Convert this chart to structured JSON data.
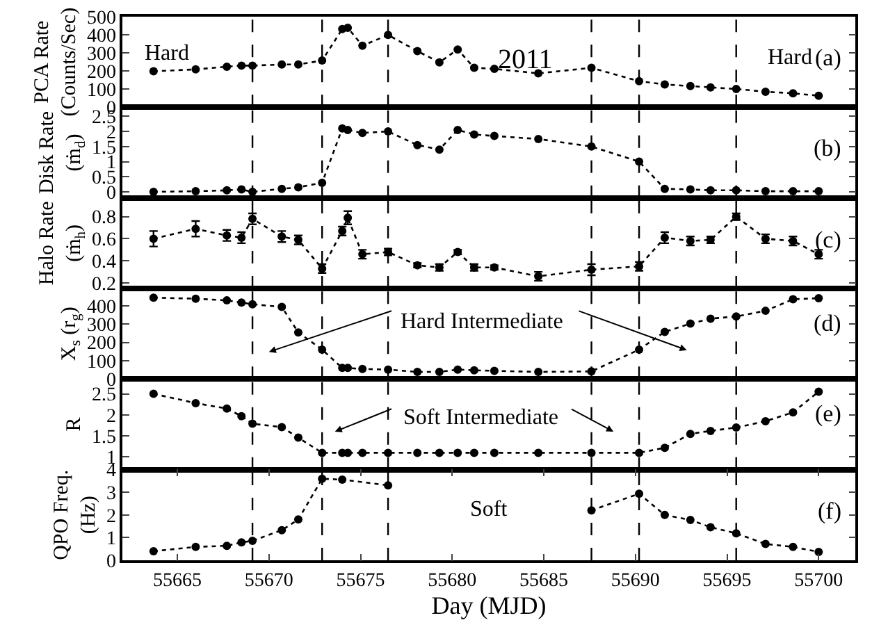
{
  "chart_data": [
    {
      "type": "line",
      "ylabel": "PCA Rate\n(Counts/Sec)",
      "color": "#000000",
      "marker": "circle",
      "line_style": "dotted",
      "xlim": [
        55662,
        55702
      ],
      "ylim": [
        0,
        500
      ],
      "yticks": [
        0,
        100,
        200,
        300,
        400,
        500
      ],
      "tick_labels": "y",
      "x": [
        55663.7,
        55666.0,
        55667.7,
        55668.5,
        55669.1,
        55670.7,
        55671.6,
        55672.9,
        55674.0,
        55674.3,
        55675.1,
        55676.5,
        55678.1,
        55679.3,
        55680.3,
        55681.2,
        55682.3,
        55684.7,
        55687.6,
        55690.2,
        55691.6,
        55693.0,
        55694.1,
        55695.5,
        55697.1,
        55698.6,
        55700.0
      ],
      "values": [
        199,
        209,
        224,
        230,
        230,
        236,
        236,
        258,
        432,
        439,
        340,
        399,
        310,
        248,
        319,
        218,
        212,
        187,
        218,
        144,
        126,
        117,
        110,
        101,
        86,
        77,
        64
      ],
      "annotations": [
        "Hard",
        "2011",
        "Hard",
        "(a)"
      ],
      "ref_lines": [
        {
          "axis": "x",
          "value": 55669.1,
          "line_style": "dashed"
        },
        {
          "axis": "x",
          "value": 55672.9,
          "line_style": "dashed"
        },
        {
          "axis": "x",
          "value": 55676.5,
          "line_style": "dashed"
        },
        {
          "axis": "x",
          "value": 55687.6,
          "line_style": "dashed"
        },
        {
          "axis": "x",
          "value": 55690.2,
          "line_style": "dashed"
        },
        {
          "axis": "x",
          "value": 55695.5,
          "line_style": "dashed"
        }
      ]
    },
    {
      "type": "line",
      "ylabel": "Disk Rate\n(ṁ$_{d}$)",
      "color": "#000000",
      "marker": "circle",
      "line_style": "dotted",
      "xlim": [
        55662,
        55702
      ],
      "ylim": [
        -0.2,
        2.8
      ],
      "yticks": [
        0,
        0.5,
        1,
        1.5,
        2,
        2.5
      ],
      "tick_labels": "y",
      "x": [
        55663.7,
        55666.0,
        55667.7,
        55668.5,
        55669.1,
        55670.7,
        55671.6,
        55672.9,
        55674.0,
        55674.3,
        55675.1,
        55676.5,
        55678.1,
        55679.3,
        55680.3,
        55681.2,
        55682.3,
        55684.7,
        55687.6,
        55690.2,
        55691.6,
        55693.0,
        55694.1,
        55695.5,
        55697.1,
        55698.6,
        55700.0
      ],
      "values": [
        0.0,
        0.02,
        0.05,
        0.08,
        0.0,
        0.1,
        0.15,
        0.3,
        2.1,
        2.05,
        1.95,
        2.0,
        1.55,
        1.4,
        2.05,
        1.9,
        1.85,
        1.75,
        1.5,
        1.0,
        0.1,
        0.08,
        0.05,
        0.05,
        0.02,
        0.02,
        0.02
      ],
      "annotations": [
        "(b)"
      ],
      "ref_lines": [
        {
          "axis": "x",
          "value": 55669.1,
          "line_style": "dashed"
        },
        {
          "axis": "x",
          "value": 55672.9,
          "line_style": "dashed"
        },
        {
          "axis": "x",
          "value": 55676.5,
          "line_style": "dashed"
        },
        {
          "axis": "x",
          "value": 55687.6,
          "line_style": "dashed"
        },
        {
          "axis": "x",
          "value": 55690.2,
          "line_style": "dashed"
        },
        {
          "axis": "x",
          "value": 55695.5,
          "line_style": "dashed"
        }
      ]
    },
    {
      "type": "line",
      "ylabel": "Halo Rate\n(ṁ$_{h}$)",
      "color": "#000000",
      "marker": "circle",
      "line_style": "dotted",
      "xlim": [
        55662,
        55702
      ],
      "ylim": [
        0.15,
        0.97
      ],
      "yticks": [
        0.2,
        0.4,
        0.6,
        0.8
      ],
      "tick_labels": "y",
      "x": [
        55663.7,
        55666.0,
        55667.7,
        55668.5,
        55669.1,
        55670.7,
        55671.6,
        55672.9,
        55674.0,
        55674.3,
        55675.1,
        55676.5,
        55678.1,
        55679.3,
        55680.3,
        55681.2,
        55682.3,
        55684.7,
        55687.6,
        55690.2,
        55691.6,
        55693.0,
        55694.1,
        55695.5,
        55697.1,
        55698.6,
        55700.0
      ],
      "values": [
        0.6,
        0.69,
        0.63,
        0.61,
        0.78,
        0.62,
        0.59,
        0.33,
        0.67,
        0.79,
        0.46,
        0.48,
        0.36,
        0.34,
        0.48,
        0.34,
        0.34,
        0.26,
        0.32,
        0.35,
        0.61,
        0.58,
        0.59,
        0.8,
        0.6,
        0.58,
        0.46
      ],
      "errors": [
        0.07,
        0.07,
        0.05,
        0.05,
        0.05,
        0.05,
        0.04,
        0.04,
        0.04,
        0.06,
        0.04,
        0.03,
        0.02,
        0.03,
        0.02,
        0.03,
        0.02,
        0.04,
        0.05,
        0.04,
        0.05,
        0.04,
        0.03,
        0.03,
        0.04,
        0.04,
        0.04
      ],
      "annotations": [
        "(c)"
      ],
      "ref_lines": [
        {
          "axis": "x",
          "value": 55669.1,
          "line_style": "dashed"
        },
        {
          "axis": "x",
          "value": 55672.9,
          "line_style": "dashed"
        },
        {
          "axis": "x",
          "value": 55676.5,
          "line_style": "dashed"
        },
        {
          "axis": "x",
          "value": 55687.6,
          "line_style": "dashed"
        },
        {
          "axis": "x",
          "value": 55690.2,
          "line_style": "dashed"
        },
        {
          "axis": "x",
          "value": 55695.5,
          "line_style": "dashed"
        }
      ]
    },
    {
      "type": "line",
      "ylabel": "X$_{s}$ (r$_{g}$)",
      "color": "#000000",
      "marker": "circle",
      "line_style": "dotted",
      "xlim": [
        55662,
        55702
      ],
      "ylim": [
        0,
        495
      ],
      "yticks": [
        0,
        100,
        200,
        300,
        400
      ],
      "tick_labels": "y",
      "x": [
        55663.7,
        55666.0,
        55667.7,
        55668.5,
        55669.1,
        55670.7,
        55671.6,
        55672.9,
        55674.0,
        55674.3,
        55675.1,
        55676.5,
        55678.1,
        55679.3,
        55680.3,
        55681.2,
        55682.3,
        55684.7,
        55687.6,
        55690.2,
        55691.6,
        55693.0,
        55694.1,
        55695.5,
        55697.1,
        55698.6,
        55700.0
      ],
      "values": [
        445,
        439,
        430,
        418,
        409,
        394,
        255,
        161,
        61,
        61,
        55,
        52,
        39,
        39,
        52,
        48,
        45,
        39,
        42,
        161,
        258,
        303,
        330,
        342,
        373,
        436,
        442
      ],
      "annotations": [
        "Hard Intermediate",
        "(d)"
      ],
      "ref_lines": [
        {
          "axis": "x",
          "value": 55669.1,
          "line_style": "dashed"
        },
        {
          "axis": "x",
          "value": 55672.9,
          "line_style": "dashed"
        },
        {
          "axis": "x",
          "value": 55676.5,
          "line_style": "dashed"
        },
        {
          "axis": "x",
          "value": 55687.6,
          "line_style": "dashed"
        },
        {
          "axis": "x",
          "value": 55690.2,
          "line_style": "dashed"
        },
        {
          "axis": "x",
          "value": 55695.5,
          "line_style": "dashed"
        }
      ]
    },
    {
      "type": "line",
      "ylabel": "R",
      "color": "#000000",
      "marker": "circle",
      "line_style": "dotted",
      "xlim": [
        55662,
        55702
      ],
      "ylim": [
        0.7,
        2.85
      ],
      "yticks": [
        1,
        1.5,
        2,
        2.5
      ],
      "tick_labels": "y",
      "x": [
        55663.7,
        55666.0,
        55667.7,
        55668.5,
        55669.1,
        55670.7,
        55671.6,
        55672.9,
        55674.0,
        55674.3,
        55675.1,
        55676.5,
        55678.1,
        55679.3,
        55680.3,
        55681.2,
        55682.3,
        55684.7,
        55687.6,
        55690.2,
        55691.6,
        55693.0,
        55694.1,
        55695.5,
        55697.1,
        55698.6,
        55700.0
      ],
      "values": [
        2.5,
        2.28,
        2.15,
        1.97,
        1.79,
        1.71,
        1.46,
        1.1,
        1.1,
        1.1,
        1.1,
        1.1,
        1.1,
        1.1,
        1.1,
        1.1,
        1.1,
        1.1,
        1.1,
        1.1,
        1.22,
        1.55,
        1.62,
        1.7,
        1.85,
        2.06,
        2.55
      ],
      "annotations": [
        "Soft Intermediate",
        "(e)"
      ],
      "ref_lines": [
        {
          "axis": "x",
          "value": 55669.1,
          "line_style": "dashed"
        },
        {
          "axis": "x",
          "value": 55672.9,
          "line_style": "dashed"
        },
        {
          "axis": "x",
          "value": 55676.5,
          "line_style": "dashed"
        },
        {
          "axis": "x",
          "value": 55687.6,
          "line_style": "dashed"
        },
        {
          "axis": "x",
          "value": 55690.2,
          "line_style": "dashed"
        },
        {
          "axis": "x",
          "value": 55695.5,
          "line_style": "dashed"
        }
      ]
    },
    {
      "type": "line",
      "ylabel": "QPO Freq.\n(Hz)",
      "xlabel": "Day (MJD)",
      "color": "#000000",
      "marker": "circle",
      "line_style": "dotted",
      "xlim": [
        55662,
        55702
      ],
      "xticks": [
        55665,
        55670,
        55675,
        55680,
        55685,
        55690,
        55695,
        55700
      ],
      "ylim": [
        0,
        4
      ],
      "yticks": [
        0,
        1,
        2,
        3,
        4
      ],
      "x": [
        55663.7,
        55666.0,
        55667.7,
        55668.5,
        55669.1,
        55670.7,
        55671.6,
        55672.9,
        55674.0,
        55676.5,
        55684.7,
        55687.6,
        55690.2,
        55691.6,
        55693.0,
        55694.1,
        55695.5,
        55697.1,
        55698.6,
        55700.0
      ],
      "values": [
        0.4,
        0.59,
        0.64,
        0.79,
        0.86,
        1.33,
        1.8,
        3.6,
        3.56,
        3.31,
        null,
        2.2,
        2.94,
        2.0,
        1.78,
        1.46,
        1.19,
        0.72,
        0.59,
        0.37
      ],
      "annotations": [
        "Soft",
        "(f)"
      ],
      "ref_lines": [
        {
          "axis": "x",
          "value": 55669.1,
          "line_style": "dashed"
        },
        {
          "axis": "x",
          "value": 55672.9,
          "line_style": "dashed"
        },
        {
          "axis": "x",
          "value": 55676.5,
          "line_style": "dashed"
        },
        {
          "axis": "x",
          "value": 55687.6,
          "line_style": "dashed"
        },
        {
          "axis": "x",
          "value": 55690.2,
          "line_style": "dashed"
        },
        {
          "axis": "x",
          "value": 55695.5,
          "line_style": "dashed"
        }
      ]
    }
  ]
}
